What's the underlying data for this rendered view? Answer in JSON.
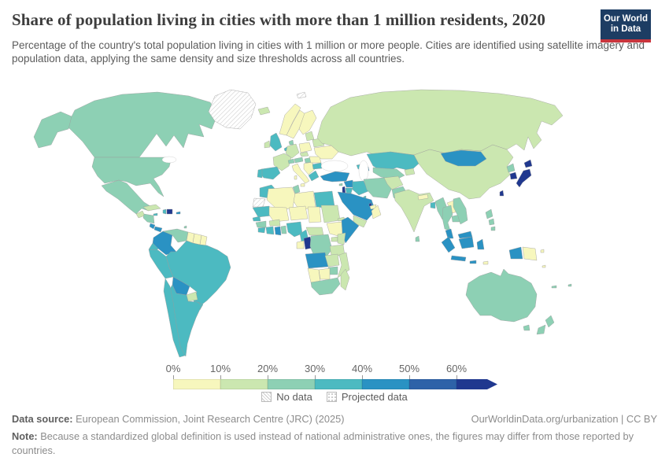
{
  "header": {
    "title": "Share of population living in cities with more than 1 million residents, 2020",
    "subtitle": "Percentage of the country's total population living in cities with 1 million or more people. Cities are identified using satellite imagery and population data, applying the same density and size thresholds across all countries.",
    "logo": {
      "line1": "Our World",
      "line2": "in Data",
      "bg_color": "#1d3d63",
      "stripe_color": "#c9353d"
    }
  },
  "legend": {
    "ticks": [
      "0%",
      "10%",
      "20%",
      "30%",
      "40%",
      "50%",
      "60%"
    ],
    "no_data_label": "No data",
    "projected_label": "Projected data"
  },
  "footer": {
    "datasource_label": "Data source:",
    "datasource": "European Commission, Joint Research Centre (JRC) (2025)",
    "link": "OurWorldinData.org/urbanization | CC BY",
    "note_label": "Note:",
    "note": "Because a standardized global definition is used instead of national administrative ones, the figures may differ from those reported by countries."
  },
  "chart_data": {
    "type": "choropleth",
    "title": "Share of population living in cities with more than 1 million residents",
    "year": "2020",
    "unit": "%",
    "legend_position": "bottom",
    "bins": [
      {
        "range": "0-10%",
        "color": "#f7f7bd"
      },
      {
        "range": "10-20%",
        "color": "#cbe7b0"
      },
      {
        "range": "20-30%",
        "color": "#8dd0b4"
      },
      {
        "range": "30-40%",
        "color": "#4cbac1"
      },
      {
        "range": "40-50%",
        "color": "#2a92c3"
      },
      {
        "range": "50-60%",
        "color": "#2e62a8"
      },
      {
        "range": "60%+",
        "color": "#20388f"
      }
    ],
    "countries": {
      "canada": "20-30%",
      "united-states": "20-30%",
      "alaska": "20-30%",
      "greenland": "no-data",
      "mexico": "20-30%",
      "guatemala": "10-20%",
      "honduras": "20-30%",
      "costa-rica": "40-50%",
      "panama": "40-50%",
      "cuba": "10-20%",
      "haiti": "30-40%",
      "dominican-republic": "60%+",
      "jamaica": "30-40%",
      "puerto-rico": "40-50%",
      "trinidad-tobago": "20-30%",
      "colombia": "40-50%",
      "venezuela": "20-30%",
      "guyana": "0-10%",
      "suriname": "0-10%",
      "french-guiana": "0-10%",
      "ecuador": "30-40%",
      "peru": "30-40%",
      "brazil": "30-40%",
      "bolivia": "40-50%",
      "paraguay": "10-20%",
      "chile": "30-40%",
      "argentina": "30-40%",
      "uruguay": "30-40%",
      "iceland": "10-20%",
      "norway": "0-10%",
      "sweden": "0-10%",
      "finland": "0-10%",
      "svalbard": "no-data",
      "denmark": "20-30%",
      "united-kingdom": "30-40%",
      "ireland": "10-20%",
      "france": "10-20%",
      "spain": "30-40%",
      "portugal": "30-40%",
      "germany": "10-20%",
      "benelux": "30-40%",
      "switzerland": "20-30%",
      "austria": "20-30%",
      "italy": "0-10%",
      "sicily": "0-10%",
      "sardinia": "0-10%",
      "poland": "0-10%",
      "czechia": "10-20%",
      "hungary": "20-30%",
      "balkans": "0-10%",
      "greece": "30-40%",
      "romania": "0-10%",
      "bulgaria": "30-40%",
      "baltics": "10-20%",
      "belarus": "10-20%",
      "ukraine": "0-10%",
      "russia": "10-20%",
      "kazakhstan": "30-40%",
      "uzbekistan": "20-30%",
      "kyrgyzstan": "10-20%",
      "georgia": "30-40%",
      "azerbaijan": "40-50%",
      "turkey": "40-50%",
      "cyprus": "20-30%",
      "syria": "40-50%",
      "israel": "60%+",
      "jordan": "30-40%",
      "iraq": "30-40%",
      "iran": "20-30%",
      "afghanistan": "10-20%",
      "pakistan": "20-30%",
      "saudi-arabia": "40-50%",
      "yemen": "10-20%",
      "oman": "0-10%",
      "uae": "0-10%",
      "qatar": "60%+",
      "kuwait": "30-40%",
      "egypt": "30-40%",
      "libya": "0-10%",
      "tunisia": "20-30%",
      "algeria": "0-10%",
      "morocco": "30-40%",
      "western-sahara": "no-data",
      "mauritania": "30-40%",
      "mali": "0-10%",
      "niger": "0-10%",
      "chad": "0-10%",
      "sudan": "10-20%",
      "eritrea": "10-20%",
      "ethiopia": "0-10%",
      "somalia": "40-50%",
      "senegal": "30-40%",
      "guinea": "20-30%",
      "sierra-leone": "30-40%",
      "ivory-coast": "30-40%",
      "ghana": "40-50%",
      "togo-benin": "20-30%",
      "burkina-faso": "10-20%",
      "nigeria": "30-40%",
      "cameroon": "30-40%",
      "central-african-republic": "10-20%",
      "gabon": "0-10%",
      "congo": "60%+",
      "dr-congo": "20-30%",
      "uganda": "10-20%",
      "kenya": "10-20%",
      "tanzania": "10-20%",
      "angola": "40-50%",
      "zambia": "10-20%",
      "mozambique": "10-20%",
      "zimbabwe": "20-30%",
      "botswana": "0-10%",
      "namibia": "0-10%",
      "south-africa": "20-30%",
      "madagascar": "10-20%",
      "india": "10-20%",
      "nepal": "0-10%",
      "bangladesh": "30-40%",
      "sri-lanka": "20-30%",
      "china": "10-20%",
      "mongolia": "40-50%",
      "north-korea": "20-30%",
      "south-korea": "60%+",
      "japan": "60%+",
      "japan-hokkaido": "60%+",
      "taiwan": "60%+",
      "myanmar": "20-30%",
      "laos": "0-10%",
      "thailand": "20-30%",
      "cambodia": "20-30%",
      "vietnam": "20-30%",
      "malaysia": "40-50%",
      "malaysia-borneo": "40-50%",
      "philippines": "20-30%",
      "philippines-2": "20-30%",
      "philippines-3": "20-30%",
      "indonesia-sumatra": "40-50%",
      "indonesia-java": "40-50%",
      "indonesia-kalimantan": "40-50%",
      "indonesia-sulawesi": "40-50%",
      "indonesia-papua": "40-50%",
      "indonesia-lesser-sunda": "40-50%",
      "timor": "0-10%",
      "papua-new-guinea": "0-10%",
      "png-islands": "0-10%",
      "solomon-islands": "0-10%",
      "australia": "20-30%",
      "tasmania": "20-30%",
      "new-zealand-north": "20-30%",
      "new-zealand-south": "20-30%",
      "new-caledonia": "20-30%",
      "fiji": "20-30%"
    }
  }
}
